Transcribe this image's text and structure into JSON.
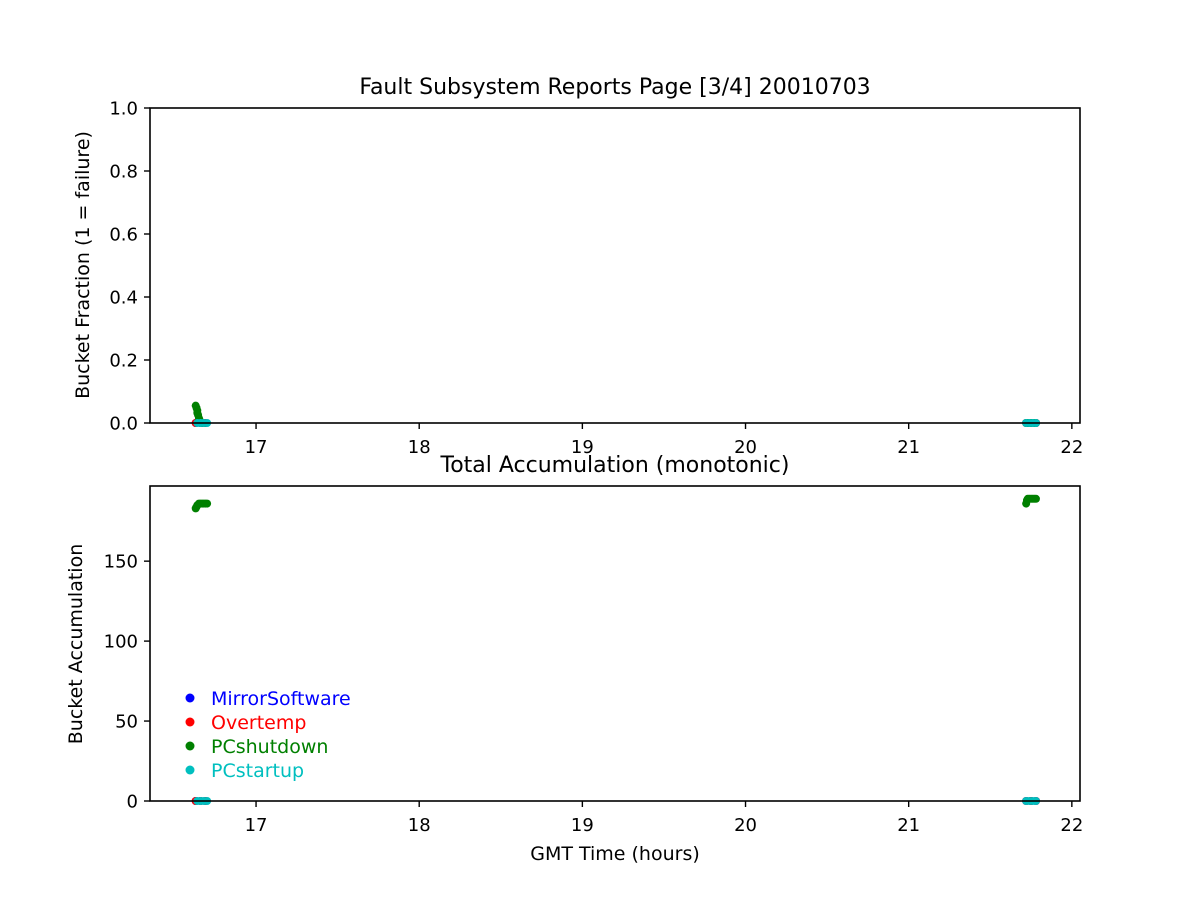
{
  "chart_data": [
    {
      "type": "scatter",
      "title": "Fault Subsystem Reports Page [3/4] 20010703",
      "xlabel": "",
      "ylabel": "Bucket Fraction (1 = failure)",
      "xlim": [
        16.35,
        22.05
      ],
      "ylim": [
        0.0,
        1.0
      ],
      "xticks": [
        17,
        18,
        19,
        20,
        21,
        22
      ],
      "yticks": [
        0.0,
        0.2,
        0.4,
        0.6,
        0.8,
        1.0
      ],
      "xtick_labels": [
        "17",
        "18",
        "19",
        "20",
        "21",
        "22"
      ],
      "ytick_labels": [
        "0.0",
        "0.2",
        "0.4",
        "0.6",
        "0.8",
        "1.0"
      ],
      "grid": false,
      "series": [
        {
          "name": "MirrorSoftware",
          "color": "#0000ff",
          "x": [
            16.63,
            16.66,
            16.69,
            21.72,
            21.75,
            21.78
          ],
          "y": [
            0.0,
            0.0,
            0.0,
            0.0,
            0.0,
            0.0
          ]
        },
        {
          "name": "Overtemp",
          "color": "#ff0000",
          "x": [
            16.63,
            16.66,
            16.69,
            21.72,
            21.75,
            21.78
          ],
          "y": [
            0.0,
            0.0,
            0.0,
            0.0,
            0.0,
            0.0
          ]
        },
        {
          "name": "PCshutdown",
          "color": "#008000",
          "x": [
            16.63,
            16.635,
            16.64,
            16.64,
            16.645,
            16.65,
            16.655,
            16.66,
            16.67,
            16.68,
            21.72,
            21.73,
            21.74,
            21.75,
            21.76,
            21.77,
            21.78
          ],
          "y": [
            0.055,
            0.048,
            0.04,
            0.032,
            0.025,
            0.015,
            0.008,
            0.003,
            0.0,
            0.0,
            0.0,
            0.0,
            0.0,
            0.0,
            0.0,
            0.0,
            0.0
          ]
        },
        {
          "name": "PCstartup",
          "color": "#00bfbf",
          "x": [
            16.64,
            16.66,
            16.68,
            16.7,
            21.72,
            21.74,
            21.76,
            21.78
          ],
          "y": [
            0.0,
            0.0,
            0.0,
            0.0,
            0.0,
            0.0,
            0.0,
            0.0
          ]
        }
      ]
    },
    {
      "type": "scatter",
      "title": "Total Accumulation (monotonic)",
      "xlabel": "GMT Time (hours)",
      "ylabel": "Bucket Accumulation",
      "xlim": [
        16.35,
        22.05
      ],
      "ylim": [
        0,
        197
      ],
      "xticks": [
        17,
        18,
        19,
        20,
        21,
        22
      ],
      "yticks": [
        0,
        50,
        100,
        150
      ],
      "xtick_labels": [
        "17",
        "18",
        "19",
        "20",
        "21",
        "22"
      ],
      "ytick_labels": [
        "0",
        "50",
        "100",
        "150"
      ],
      "grid": false,
      "legend": {
        "location": "lower-left",
        "entries": [
          {
            "label": "MirrorSoftware",
            "color": "#0000ff"
          },
          {
            "label": "Overtemp",
            "color": "#ff0000"
          },
          {
            "label": "PCshutdown",
            "color": "#008000"
          },
          {
            "label": "PCstartup",
            "color": "#00bfbf"
          }
        ]
      },
      "series": [
        {
          "name": "MirrorSoftware",
          "color": "#0000ff",
          "x": [
            16.63,
            16.66,
            16.69,
            21.72,
            21.75,
            21.78
          ],
          "y": [
            0,
            0,
            0,
            0,
            0,
            0
          ]
        },
        {
          "name": "Overtemp",
          "color": "#ff0000",
          "x": [
            16.63,
            16.66,
            16.69,
            21.72,
            21.75,
            21.78
          ],
          "y": [
            0,
            0,
            0,
            0,
            0,
            0
          ]
        },
        {
          "name": "PCshutdown",
          "color": "#008000",
          "x": [
            16.63,
            16.635,
            16.64,
            16.65,
            16.66,
            16.67,
            16.68,
            16.69,
            16.7,
            21.72,
            21.725,
            21.73,
            21.74,
            21.75,
            21.76,
            21.77,
            21.78
          ],
          "y": [
            183,
            184,
            185,
            186,
            186,
            186,
            186,
            186,
            186,
            186,
            188,
            189,
            189,
            189,
            189,
            189,
            189
          ]
        },
        {
          "name": "PCstartup",
          "color": "#00bfbf",
          "x": [
            16.64,
            16.66,
            16.68,
            16.7,
            21.72,
            21.74,
            21.76,
            21.78
          ],
          "y": [
            0,
            0,
            0,
            0,
            0,
            0,
            0,
            0
          ]
        }
      ]
    }
  ]
}
